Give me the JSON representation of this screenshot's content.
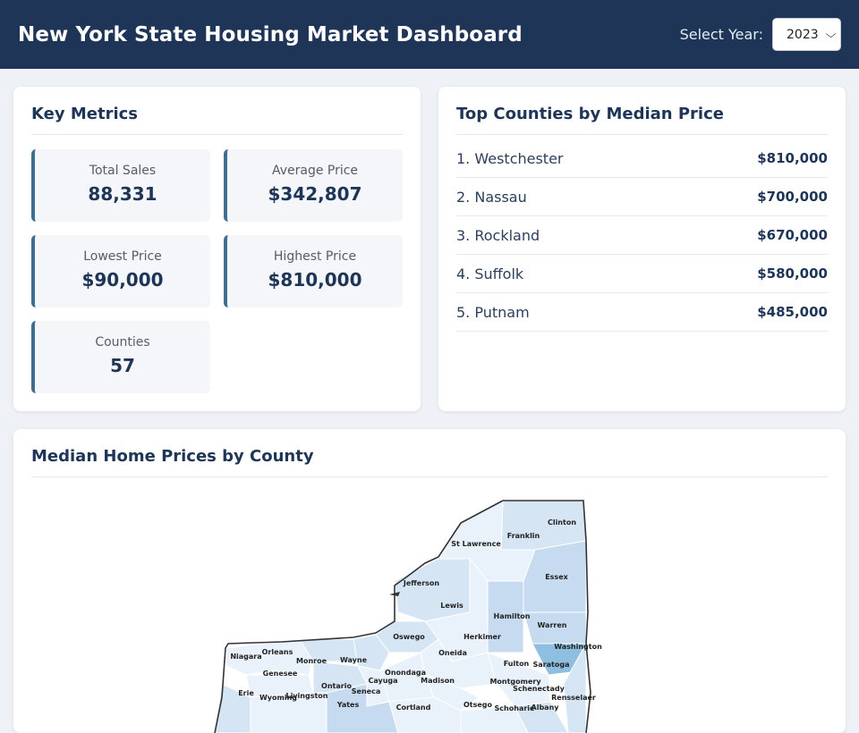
{
  "header": {
    "title": "New York State Housing Market Dashboard",
    "year_label": "Select Year:",
    "year_value": "2023"
  },
  "metrics": {
    "title": "Key Metrics",
    "items": [
      {
        "label": "Total Sales",
        "value": "88,331"
      },
      {
        "label": "Average Price",
        "value": "$342,807"
      },
      {
        "label": "Lowest Price",
        "value": "$90,000"
      },
      {
        "label": "Highest Price",
        "value": "$810,000"
      },
      {
        "label": "Counties",
        "value": "57"
      }
    ]
  },
  "top_counties": {
    "title": "Top Counties by Median Price",
    "rows": [
      {
        "name": "1. Westchester",
        "price": "$810,000"
      },
      {
        "name": "2. Nassau",
        "price": "$700,000"
      },
      {
        "name": "3. Rockland",
        "price": "$670,000"
      },
      {
        "name": "4. Suffolk",
        "price": "$580,000"
      },
      {
        "name": "5. Putnam",
        "price": "$485,000"
      }
    ]
  },
  "map": {
    "title": "Median Home Prices by County",
    "counties": [
      "Clinton",
      "Franklin",
      "St Lawrence",
      "Essex",
      "Jefferson",
      "Lewis",
      "Hamilton",
      "Warren",
      "Washington",
      "Herkimer",
      "Oswego",
      "Oneida",
      "Saratoga",
      "Fulton",
      "Orleans",
      "Niagara",
      "Monroe",
      "Wayne",
      "Genesee",
      "Onondaga",
      "Madison",
      "Montgomery",
      "Schenectady",
      "Ontario",
      "Cayuga",
      "Livingston",
      "Wyoming",
      "Erie",
      "Seneca",
      "Rensselaer",
      "Yates",
      "Cortland",
      "Otsego",
      "Schoharie",
      "Albany"
    ],
    "colors": {
      "light": "#e9f1fa",
      "mid": "#c6dbef",
      "dark": "#8fbfe0",
      "border": "#333333"
    }
  }
}
